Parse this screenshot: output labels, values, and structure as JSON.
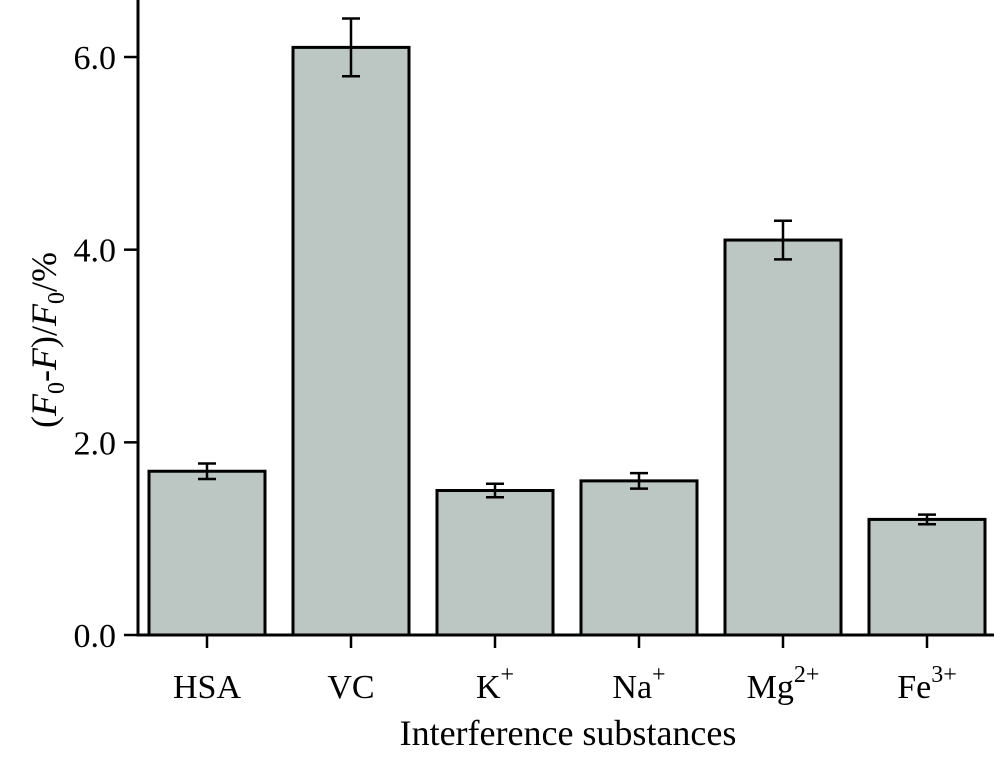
{
  "chart_data": {
    "type": "bar",
    "categories": [
      {
        "base": "HSA",
        "sup": ""
      },
      {
        "base": "VC",
        "sup": ""
      },
      {
        "base": "K",
        "sup": "+"
      },
      {
        "base": "Na",
        "sup": "+"
      },
      {
        "base": "Mg",
        "sup": "2+"
      },
      {
        "base": "Fe",
        "sup": "3+"
      }
    ],
    "values": [
      1.7,
      6.1,
      1.5,
      1.6,
      4.1,
      1.2
    ],
    "errors": [
      0.08,
      0.3,
      0.07,
      0.08,
      0.2,
      0.05
    ],
    "xlabel": "Interference substances",
    "ylabel": {
      "p1": "(",
      "f1": "F",
      "s1": "0",
      "p2": "-",
      "f2": "F",
      "p3": ")/",
      "f3": "F",
      "s3": "0",
      "p4": "/%"
    },
    "ylim": [
      0,
      6.6
    ],
    "yticks": [
      "0.0",
      "2.0",
      "4.0",
      "6.0"
    ],
    "ytick_values": [
      0,
      2,
      4,
      6
    ],
    "bar_color": "#bcc6c3",
    "edge_color": "#000000"
  }
}
